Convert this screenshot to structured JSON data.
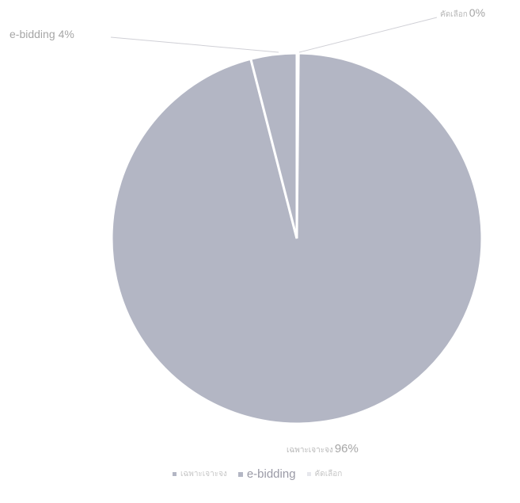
{
  "chart_data": {
    "type": "pie",
    "categories": [
      "เฉพาะเจาะจง",
      "e-bidding",
      "คัดเลือก"
    ],
    "values": [
      96,
      4,
      0
    ],
    "unit": "%",
    "colors": [
      "#b3b6c4",
      "#b3b6c4",
      "#e6e7ec"
    ],
    "data_labels": [
      {
        "category": "เฉพาะเจาะจง",
        "value": "96%"
      },
      {
        "category": "e-bidding",
        "value": "4%"
      },
      {
        "category": "คัดเลือก",
        "value": "0%"
      }
    ],
    "legend": {
      "placement": "bottom",
      "entries": [
        "เฉพาะเจาะจง",
        "e-bidding",
        "คัดเลือก"
      ]
    }
  }
}
